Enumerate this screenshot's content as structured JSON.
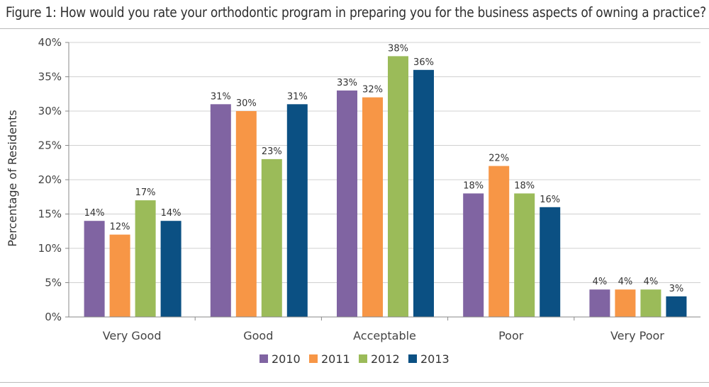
{
  "chart_data": {
    "type": "bar",
    "title": "Figure 1: How would you rate your orthodontic program in preparing you for the business aspects of owning a practice?",
    "ylabel": "Percentage of Residents",
    "xlabel": "",
    "ylim": [
      0,
      40
    ],
    "yticks": [
      "0%",
      "5%",
      "10%",
      "15%",
      "20%",
      "25%",
      "30%",
      "35%",
      "40%"
    ],
    "grid": true,
    "legend_position": "bottom",
    "categories": [
      "Very Good",
      "Good",
      "Acceptable",
      "Poor",
      "Very Poor"
    ],
    "series": [
      {
        "name": "2010",
        "color": "#8064a2",
        "values": [
          14,
          31,
          33,
          18,
          4
        ],
        "labels": [
          "14%",
          "31%",
          "33%",
          "18%",
          "4%"
        ]
      },
      {
        "name": "2011",
        "color": "#f79646",
        "values": [
          12,
          30,
          32,
          22,
          4
        ],
        "labels": [
          "12%",
          "30%",
          "32%",
          "22%",
          "4%"
        ]
      },
      {
        "name": "2012",
        "color": "#9bbb59",
        "values": [
          17,
          23,
          38,
          18,
          4
        ],
        "labels": [
          "17%",
          "23%",
          "38%",
          "18%",
          "4%"
        ]
      },
      {
        "name": "2013",
        "color": "#0b5083",
        "values": [
          14,
          31,
          36,
          16,
          3
        ],
        "labels": [
          "14%",
          "31%",
          "36%",
          "16%",
          "3%"
        ]
      }
    ]
  }
}
